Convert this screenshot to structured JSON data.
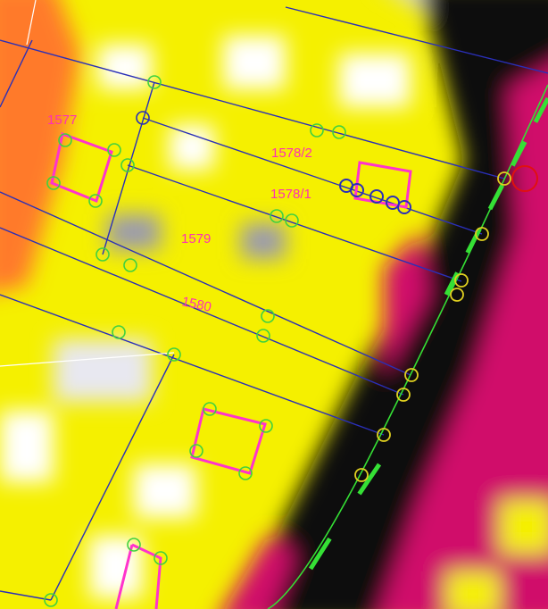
{
  "parcels": [
    {
      "label": "1577"
    },
    {
      "label": "1578/2"
    },
    {
      "label": "1578/1"
    },
    {
      "label": "1579"
    },
    {
      "label": "1580"
    }
  ]
}
